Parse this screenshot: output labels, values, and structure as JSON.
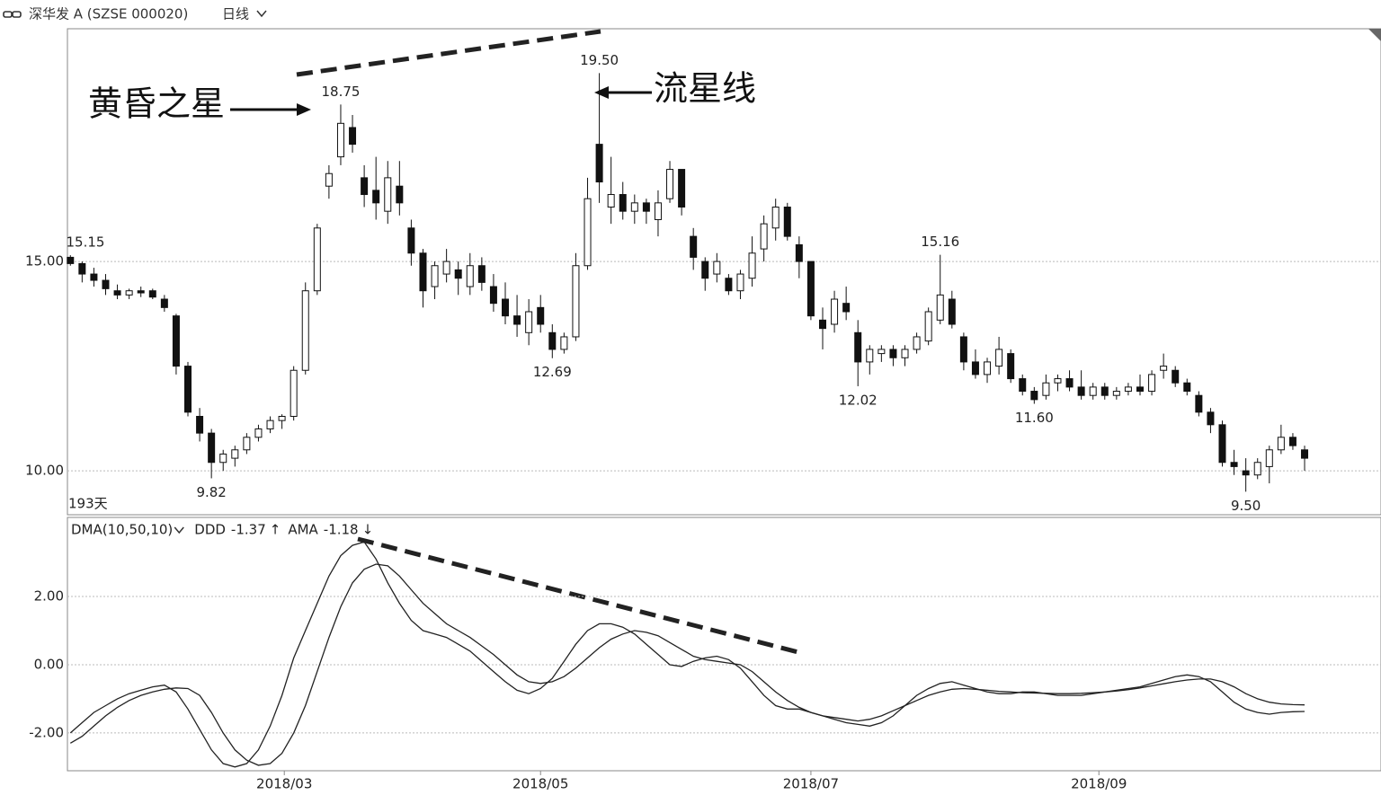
{
  "chart_data": [
    {
      "type": "candlestick",
      "title": "深华发 A (SZSE 000020)",
      "interval": "日线",
      "period_label": "193天",
      "up_color": "#ffffff",
      "down_color": "#111111",
      "grid": true,
      "xlim": [
        -0.25,
        111.5
      ],
      "xticks": [
        {
          "value": 18.2,
          "label": "2018/03"
        },
        {
          "value": 40,
          "label": "2018/05"
        },
        {
          "value": 63,
          "label": "2018/07"
        },
        {
          "value": 87.5,
          "label": "2018/09"
        }
      ],
      "ylim": [
        8.95,
        20.56
      ],
      "yticks": [
        {
          "value": 10,
          "label": "10.00"
        },
        {
          "value": 15,
          "label": "15.00"
        }
      ],
      "ohlc": [
        [
          15.1,
          15.15,
          14.9,
          14.95
        ],
        [
          14.95,
          15.0,
          14.5,
          14.7
        ],
        [
          14.7,
          14.85,
          14.4,
          14.55
        ],
        [
          14.55,
          14.7,
          14.2,
          14.35
        ],
        [
          14.3,
          14.45,
          14.1,
          14.2
        ],
        [
          14.2,
          14.35,
          14.1,
          14.3
        ],
        [
          14.3,
          14.4,
          14.15,
          14.25
        ],
        [
          14.3,
          14.35,
          14.1,
          14.15
        ],
        [
          14.1,
          14.2,
          13.8,
          13.9
        ],
        [
          13.7,
          13.75,
          12.3,
          12.5
        ],
        [
          12.5,
          12.6,
          11.3,
          11.4
        ],
        [
          11.3,
          11.5,
          10.7,
          10.9
        ],
        [
          10.9,
          11.0,
          9.82,
          10.2
        ],
        [
          10.2,
          10.5,
          10.0,
          10.4
        ],
        [
          10.3,
          10.6,
          10.1,
          10.5
        ],
        [
          10.5,
          10.9,
          10.4,
          10.8
        ],
        [
          10.8,
          11.1,
          10.7,
          11.0
        ],
        [
          11.0,
          11.3,
          10.9,
          11.2
        ],
        [
          11.2,
          11.35,
          11.0,
          11.3
        ],
        [
          11.3,
          12.5,
          11.2,
          12.4
        ],
        [
          12.4,
          14.5,
          12.3,
          14.3
        ],
        [
          14.3,
          15.9,
          14.2,
          15.8
        ],
        [
          16.8,
          17.3,
          16.5,
          17.1
        ],
        [
          17.5,
          18.75,
          17.3,
          18.3
        ],
        [
          18.2,
          18.5,
          17.6,
          17.8
        ],
        [
          17.0,
          17.3,
          16.3,
          16.6
        ],
        [
          16.7,
          17.5,
          16.0,
          16.4
        ],
        [
          16.2,
          17.4,
          15.9,
          17.0
        ],
        [
          16.8,
          17.4,
          16.1,
          16.4
        ],
        [
          15.8,
          16.0,
          14.9,
          15.2
        ],
        [
          15.2,
          15.3,
          13.9,
          14.3
        ],
        [
          14.4,
          15.0,
          14.1,
          14.9
        ],
        [
          14.7,
          15.3,
          14.5,
          15.0
        ],
        [
          14.8,
          15.0,
          14.2,
          14.6
        ],
        [
          14.4,
          15.2,
          14.2,
          14.9
        ],
        [
          14.9,
          15.1,
          14.3,
          14.5
        ],
        [
          14.4,
          14.7,
          13.8,
          14.0
        ],
        [
          14.1,
          14.5,
          13.5,
          13.7
        ],
        [
          13.7,
          14.2,
          13.2,
          13.5
        ],
        [
          13.3,
          14.1,
          13.0,
          13.8
        ],
        [
          13.9,
          14.2,
          13.3,
          13.5
        ],
        [
          13.3,
          13.5,
          12.69,
          12.9
        ],
        [
          12.9,
          13.3,
          12.8,
          13.2
        ],
        [
          13.2,
          15.2,
          13.1,
          14.9
        ],
        [
          14.9,
          17.0,
          14.8,
          16.5
        ],
        [
          17.8,
          19.5,
          16.4,
          16.9
        ],
        [
          16.3,
          17.5,
          15.9,
          16.6
        ],
        [
          16.6,
          16.9,
          16.0,
          16.2
        ],
        [
          16.2,
          16.6,
          15.9,
          16.4
        ],
        [
          16.4,
          16.5,
          15.9,
          16.2
        ],
        [
          16.0,
          16.7,
          15.6,
          16.4
        ],
        [
          16.5,
          17.4,
          16.4,
          17.2
        ],
        [
          17.2,
          17.2,
          16.1,
          16.3
        ],
        [
          15.6,
          15.8,
          14.8,
          15.1
        ],
        [
          15.0,
          15.1,
          14.3,
          14.6
        ],
        [
          14.7,
          15.2,
          14.5,
          15.0
        ],
        [
          14.6,
          14.7,
          14.2,
          14.3
        ],
        [
          14.3,
          14.8,
          14.1,
          14.7
        ],
        [
          14.6,
          15.6,
          14.4,
          15.2
        ],
        [
          15.3,
          16.1,
          15.0,
          15.9
        ],
        [
          15.8,
          16.5,
          15.5,
          16.3
        ],
        [
          16.3,
          16.4,
          15.5,
          15.6
        ],
        [
          15.4,
          15.6,
          14.6,
          15.0
        ],
        [
          15.0,
          15.0,
          13.6,
          13.7
        ],
        [
          13.6,
          13.9,
          12.9,
          13.4
        ],
        [
          13.5,
          14.3,
          13.3,
          14.1
        ],
        [
          14.0,
          14.4,
          13.6,
          13.8
        ],
        [
          13.3,
          13.6,
          12.02,
          12.6
        ],
        [
          12.6,
          13.0,
          12.3,
          12.9
        ],
        [
          12.8,
          13.0,
          12.6,
          12.9
        ],
        [
          12.9,
          13.0,
          12.5,
          12.7
        ],
        [
          12.7,
          13.0,
          12.5,
          12.9
        ],
        [
          12.9,
          13.3,
          12.8,
          13.2
        ],
        [
          13.1,
          13.9,
          13.0,
          13.8
        ],
        [
          13.6,
          15.16,
          13.5,
          14.2
        ],
        [
          14.1,
          14.3,
          13.4,
          13.5
        ],
        [
          13.2,
          13.3,
          12.4,
          12.6
        ],
        [
          12.6,
          12.9,
          12.2,
          12.3
        ],
        [
          12.3,
          12.7,
          12.1,
          12.6
        ],
        [
          12.5,
          13.2,
          12.3,
          12.9
        ],
        [
          12.8,
          12.9,
          12.1,
          12.2
        ],
        [
          12.2,
          12.3,
          11.8,
          11.9
        ],
        [
          11.9,
          12.0,
          11.6,
          11.7
        ],
        [
          11.8,
          12.3,
          11.7,
          12.1
        ],
        [
          12.1,
          12.3,
          11.9,
          12.2
        ],
        [
          12.2,
          12.4,
          11.9,
          12.0
        ],
        [
          12.0,
          12.4,
          11.7,
          11.8
        ],
        [
          11.8,
          12.1,
          11.7,
          12.0
        ],
        [
          12.0,
          12.1,
          11.7,
          11.8
        ],
        [
          11.8,
          12.0,
          11.7,
          11.9
        ],
        [
          11.9,
          12.1,
          11.8,
          12.0
        ],
        [
          12.0,
          12.3,
          11.8,
          11.9
        ],
        [
          11.9,
          12.4,
          11.8,
          12.3
        ],
        [
          12.4,
          12.8,
          12.2,
          12.5
        ],
        [
          12.4,
          12.5,
          12.0,
          12.1
        ],
        [
          12.1,
          12.2,
          11.8,
          11.9
        ],
        [
          11.8,
          11.9,
          11.3,
          11.4
        ],
        [
          11.4,
          11.5,
          10.9,
          11.1
        ],
        [
          11.1,
          11.2,
          10.1,
          10.2
        ],
        [
          10.2,
          10.5,
          9.9,
          10.1
        ],
        [
          10.0,
          10.3,
          9.5,
          9.9
        ],
        [
          9.9,
          10.3,
          9.8,
          10.2
        ],
        [
          10.1,
          10.6,
          9.7,
          10.5
        ],
        [
          10.5,
          11.1,
          10.4,
          10.8
        ],
        [
          10.8,
          10.9,
          10.5,
          10.6
        ],
        [
          10.5,
          10.6,
          10.0,
          10.3
        ]
      ],
      "annotations": [
        {
          "at": 0,
          "side": "high",
          "value": 15.15,
          "label": "15.15"
        },
        {
          "at": 23,
          "side": "high",
          "value": 18.75,
          "label": "18.75"
        },
        {
          "at": 45,
          "side": "high",
          "value": 19.5,
          "label": "19.50"
        },
        {
          "at": 12,
          "side": "low",
          "value": 9.82,
          "label": "9.82"
        },
        {
          "at": 41,
          "side": "low",
          "value": 12.69,
          "label": "12.69"
        },
        {
          "at": 67,
          "side": "low",
          "value": 12.02,
          "label": "12.02"
        },
        {
          "at": 74,
          "side": "high",
          "value": 15.16,
          "label": "15.16"
        },
        {
          "at": 82,
          "side": "low",
          "value": 11.6,
          "label": "11.60"
        },
        {
          "at": 100,
          "side": "low",
          "value": 9.5,
          "label": "9.50"
        }
      ],
      "notes": [
        {
          "text": "黄昏之星"
        },
        {
          "text": "流星线"
        }
      ]
    },
    {
      "type": "line",
      "indicator": "DMA(10,50,10)",
      "grid": true,
      "xlim": [
        -0.25,
        111.5
      ],
      "ylim": [
        -3.11,
        4.32
      ],
      "yticks": [
        {
          "value": 2,
          "label": "2.00"
        },
        {
          "value": 0,
          "label": "0.00"
        },
        {
          "value": -2,
          "label": "-2.00"
        }
      ],
      "series": [
        {
          "name": "DDD",
          "trend": "↑",
          "color": "#222222",
          "values": [
            -2.0,
            -1.7,
            -1.4,
            -1.2,
            -1.0,
            -0.85,
            -0.75,
            -0.65,
            -0.6,
            -0.8,
            -1.3,
            -1.9,
            -2.5,
            -2.9,
            -3.0,
            -2.9,
            -2.5,
            -1.8,
            -0.9,
            0.2,
            1.0,
            1.8,
            2.6,
            3.2,
            3.5,
            3.6,
            3.1,
            2.4,
            1.8,
            1.3,
            1.0,
            0.9,
            0.8,
            0.6,
            0.4,
            0.1,
            -0.2,
            -0.5,
            -0.75,
            -0.85,
            -0.7,
            -0.4,
            0.1,
            0.6,
            1.0,
            1.2,
            1.2,
            1.1,
            0.9,
            0.6,
            0.3,
            0.0,
            -0.05,
            0.1,
            0.2,
            0.25,
            0.15,
            -0.1,
            -0.5,
            -0.9,
            -1.2,
            -1.3,
            -1.3,
            -1.4,
            -1.5,
            -1.6,
            -1.7,
            -1.75,
            -1.8,
            -1.7,
            -1.5,
            -1.2,
            -0.9,
            -0.7,
            -0.55,
            -0.5,
            -0.6,
            -0.7,
            -0.8,
            -0.85,
            -0.85,
            -0.8,
            -0.8,
            -0.85,
            -0.9,
            -0.9,
            -0.9,
            -0.85,
            -0.8,
            -0.75,
            -0.7,
            -0.65,
            -0.55,
            -0.45,
            -0.35,
            -0.3,
            -0.35,
            -0.5,
            -0.8,
            -1.1,
            -1.3,
            -1.4,
            -1.45,
            -1.4,
            -1.38,
            -1.37
          ]
        },
        {
          "name": "AMA",
          "trend": "↓",
          "color": "#222222",
          "values": [
            -2.3,
            -2.1,
            -1.8,
            -1.5,
            -1.25,
            -1.05,
            -0.9,
            -0.8,
            -0.72,
            -0.68,
            -0.7,
            -0.9,
            -1.4,
            -2.0,
            -2.5,
            -2.8,
            -2.95,
            -2.9,
            -2.6,
            -2.0,
            -1.2,
            -0.2,
            0.8,
            1.7,
            2.4,
            2.8,
            2.95,
            2.9,
            2.6,
            2.2,
            1.8,
            1.5,
            1.2,
            1.0,
            0.8,
            0.55,
            0.3,
            0.0,
            -0.3,
            -0.5,
            -0.55,
            -0.5,
            -0.35,
            -0.1,
            0.2,
            0.5,
            0.75,
            0.9,
            1.0,
            0.95,
            0.85,
            0.65,
            0.45,
            0.25,
            0.15,
            0.1,
            0.05,
            0.0,
            -0.2,
            -0.5,
            -0.8,
            -1.05,
            -1.25,
            -1.4,
            -1.5,
            -1.55,
            -1.6,
            -1.65,
            -1.6,
            -1.5,
            -1.35,
            -1.2,
            -1.05,
            -0.9,
            -0.8,
            -0.72,
            -0.7,
            -0.72,
            -0.75,
            -0.78,
            -0.8,
            -0.82,
            -0.83,
            -0.84,
            -0.85,
            -0.85,
            -0.84,
            -0.82,
            -0.8,
            -0.77,
            -0.73,
            -0.68,
            -0.62,
            -0.56,
            -0.5,
            -0.45,
            -0.42,
            -0.42,
            -0.5,
            -0.65,
            -0.85,
            -1.0,
            -1.1,
            -1.15,
            -1.17,
            -1.18
          ]
        }
      ]
    }
  ]
}
